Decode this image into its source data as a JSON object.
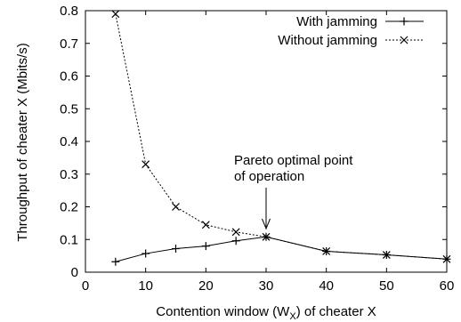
{
  "chart_data": {
    "type": "line",
    "xlabel_prefix": "Contention window (W",
    "xlabel_sub": "X",
    "xlabel_suffix": ") of cheater X",
    "ylabel": "Throughput of cheater X (Mbits/s)",
    "xlim": [
      0,
      60
    ],
    "ylim": [
      0,
      0.8
    ],
    "xticks": [
      0,
      10,
      20,
      30,
      40,
      50,
      60
    ],
    "yticks": [
      0,
      0.1,
      0.2,
      0.3,
      0.4,
      0.5,
      0.6,
      0.7,
      0.8
    ],
    "grid": false,
    "legend_position": "top-right",
    "series": [
      {
        "name": "With jamming",
        "marker": "plus",
        "line_style": "solid",
        "x": [
          5,
          10,
          15,
          20,
          25,
          30,
          40,
          50,
          60
        ],
        "y": [
          0.032,
          0.057,
          0.072,
          0.08,
          0.096,
          0.108,
          0.064,
          0.053,
          0.04
        ]
      },
      {
        "name": "Without jamming",
        "marker": "cross",
        "line_style": "dotted",
        "x": [
          5,
          10,
          15,
          20,
          25,
          30,
          40,
          50,
          60
        ],
        "y": [
          0.79,
          0.33,
          0.2,
          0.145,
          0.123,
          0.108,
          0.064,
          0.053,
          0.04
        ]
      }
    ],
    "annotations": [
      {
        "lines": [
          "Pareto optimal point",
          "of operation"
        ],
        "arrow_to": [
          30,
          0.108
        ]
      }
    ]
  }
}
